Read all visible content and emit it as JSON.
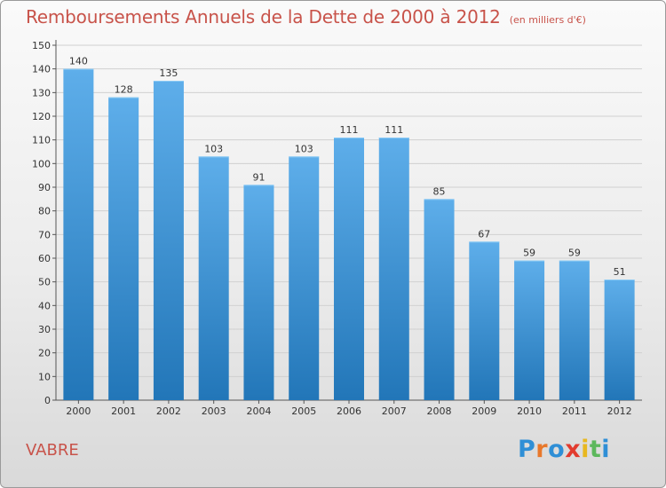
{
  "header": {
    "title": "Remboursements Annuels de la Dette de 2000 à 2012",
    "unit": "(en milliers d'€)"
  },
  "footer": {
    "place": "VABRE",
    "logo_text": "Proxiti",
    "logo_colors": [
      "#2f8fd6",
      "#e8782b",
      "#2f8fd6",
      "#e23b2e",
      "#e8b820",
      "#5cb85c",
      "#2f8fd6"
    ]
  },
  "colors": {
    "bar_top": "#5eaeea",
    "bar_bottom": "#2276b8",
    "title": "#c8534a",
    "grid": "#d0d0d0"
  },
  "chart_data": {
    "type": "bar",
    "title": "Remboursements Annuels de la Dette de 2000 à 2012",
    "subtitle": "(en milliers d'€)",
    "categories": [
      "2000",
      "2001",
      "2002",
      "2003",
      "2004",
      "2005",
      "2006",
      "2007",
      "2008",
      "2009",
      "2010",
      "2011",
      "2012"
    ],
    "values": [
      140,
      128,
      135,
      103,
      91,
      103,
      111,
      111,
      85,
      67,
      59,
      59,
      51
    ],
    "ylim": [
      0,
      150
    ],
    "yticks": [
      0,
      10,
      20,
      30,
      40,
      50,
      60,
      70,
      80,
      90,
      100,
      110,
      120,
      130,
      140,
      150
    ],
    "grid": true,
    "data_labels": true
  }
}
